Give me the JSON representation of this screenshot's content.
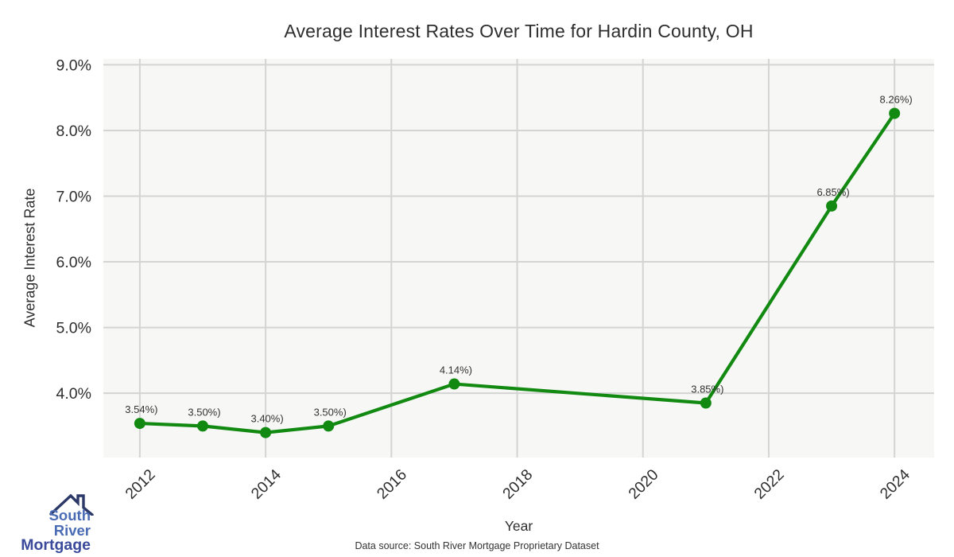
{
  "page": {
    "footer": "Data source: South River Mortgage Proprietary Dataset"
  },
  "logo": {
    "icon": "house-roof-icon",
    "line1": "South River",
    "line2": "Mortgage",
    "icon_color": "#2c3968",
    "line1_color": "#4a6cb5",
    "line2_color": "#3b4a9b"
  },
  "chart_data": {
    "type": "line",
    "title": "Average Interest Rates Over Time for Hardin County, OH",
    "xlabel": "Year",
    "ylabel": "Average Interest Rate",
    "x": [
      2012,
      2013,
      2014,
      2015,
      2017,
      2021,
      2023,
      2024
    ],
    "values": [
      3.54,
      3.5,
      3.4,
      3.5,
      4.14,
      3.85,
      6.85,
      8.26
    ],
    "point_labels": [
      "3.54%)",
      "3.50%)",
      "3.40%)",
      "3.50%)",
      "4.14%)",
      "3.85%)",
      "6.85%)",
      "8.26%)"
    ],
    "xticks": [
      2012,
      2014,
      2016,
      2018,
      2020,
      2022,
      2024
    ],
    "yticks": [
      4,
      5,
      6,
      7,
      8,
      9
    ],
    "ytick_labels": [
      "4.0%",
      "5.0%",
      "6.0%",
      "7.0%",
      "8.0%",
      "9.0%"
    ],
    "xlim": [
      2011.42,
      2024.63
    ],
    "ylim": [
      3.02,
      9.09
    ],
    "grid": true,
    "legend": "none",
    "line_color": "#128a12",
    "marker": "circle",
    "plot_bg": "#f7f7f5",
    "grid_color": "#d4d4d4",
    "text_color": "#2e2e2e"
  }
}
